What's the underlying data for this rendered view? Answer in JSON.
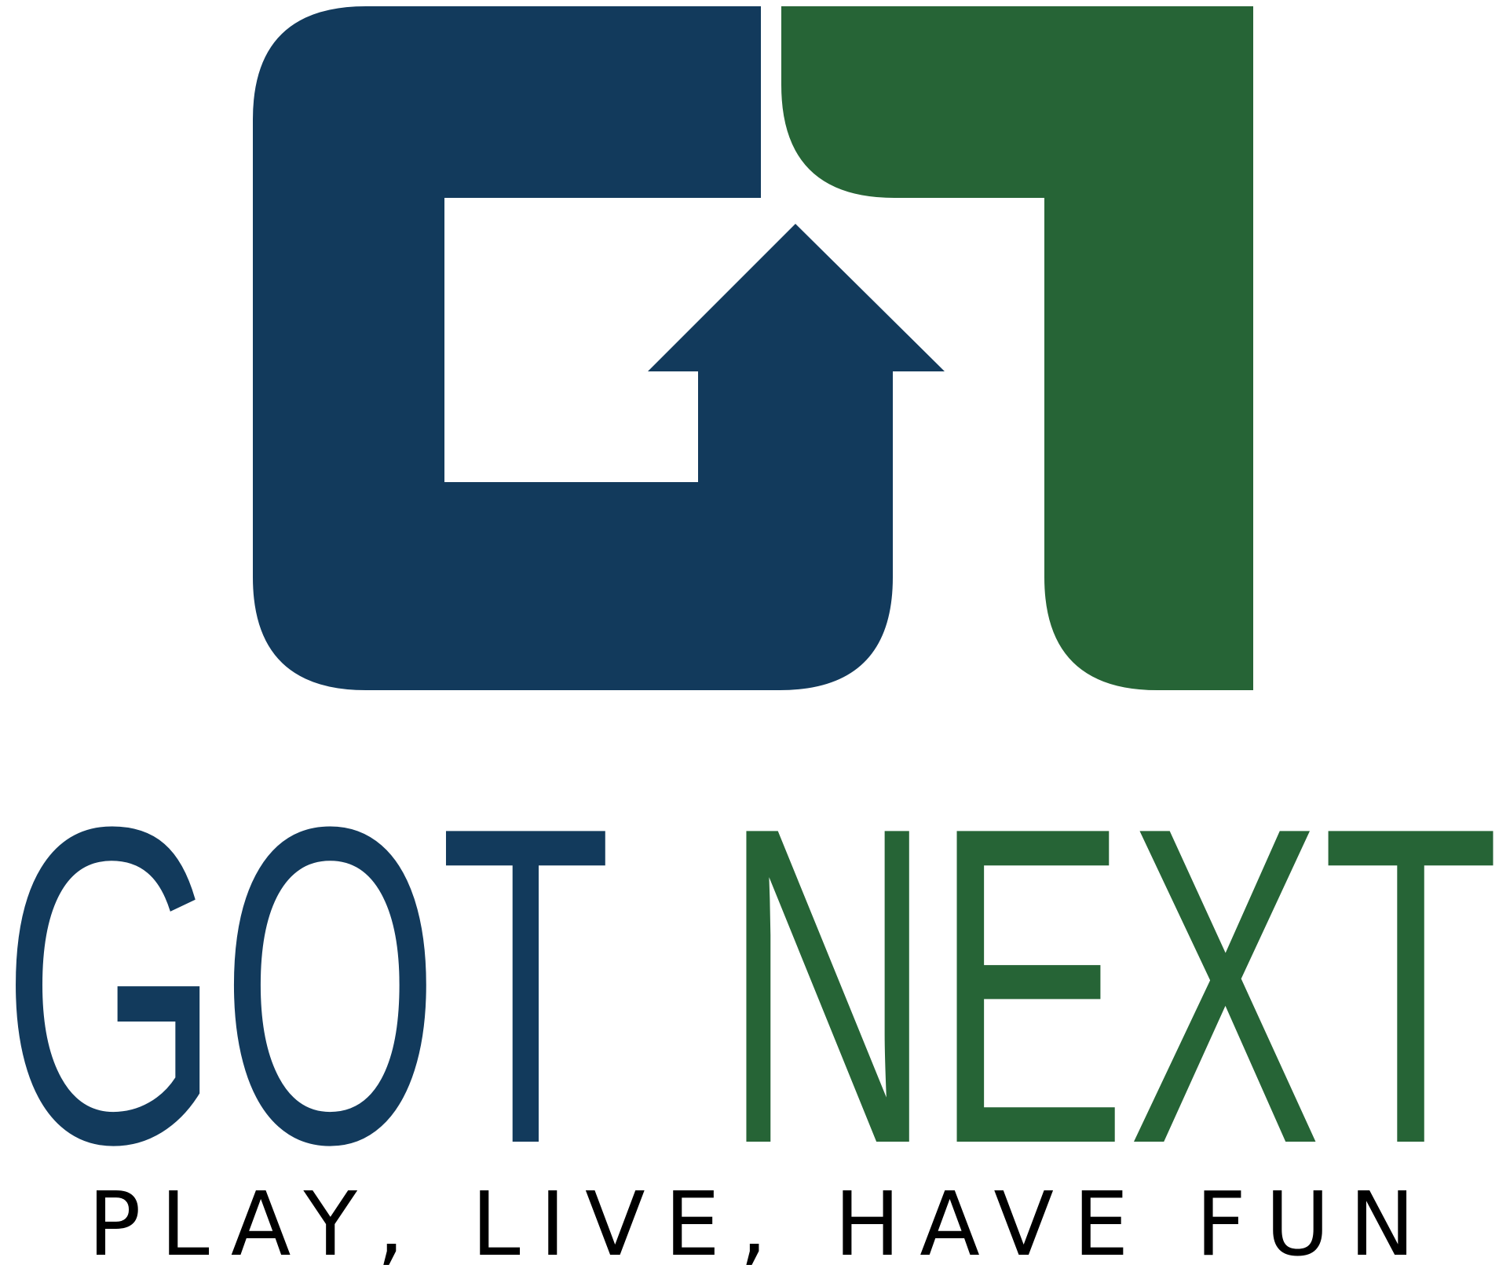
{
  "brand": {
    "word_one": "GOT",
    "word_two": "NEXT",
    "tagline": "PLAY, LIVE, HAVE FUN"
  },
  "colors": {
    "navy": "#123a5c",
    "green": "#266436",
    "tagline": "#000000",
    "background": "#ffffff"
  },
  "icons": {
    "monogram": "gn-monogram-with-up-arrow"
  }
}
